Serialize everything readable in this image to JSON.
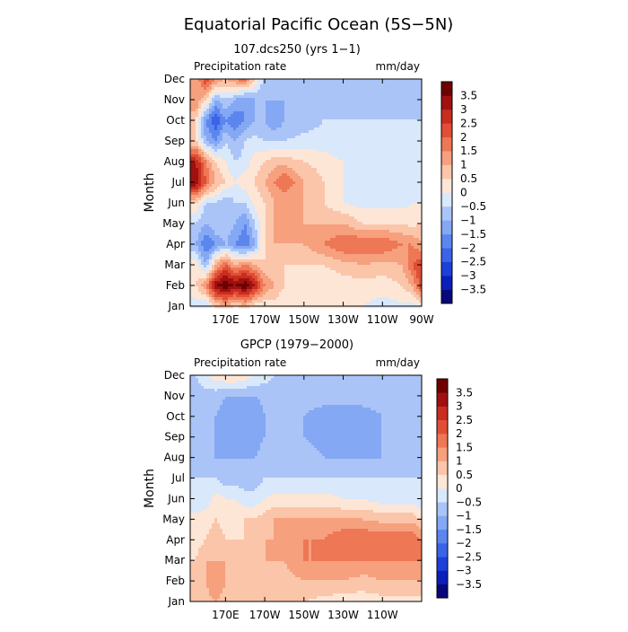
{
  "figure": {
    "title": "Equatorial Pacific Ocean (5S−5N)"
  },
  "chart_data": [
    {
      "type": "heatmap",
      "subtitle": "107.dcs250 (yrs 1−1)",
      "left_label": "Precipitation rate",
      "right_label": "mm/day",
      "ylabel": "Month",
      "y_categories": [
        "Jan",
        "Feb",
        "Mar",
        "Apr",
        "May",
        "Jun",
        "Jul",
        "Aug",
        "Sep",
        "Oct",
        "Nov",
        "Dec"
      ],
      "x_tick_labels": [
        "170E",
        "170W",
        "150W",
        "130W",
        "110W",
        "90W"
      ],
      "x_tick_lons": [
        170,
        190,
        210,
        230,
        250,
        270
      ],
      "x_range": [
        152,
        270
      ],
      "colorbar_labels": [
        "3.5",
        "3",
        "2.5",
        "2",
        "1.5",
        "1",
        "0.5",
        "0",
        "−0.5",
        "−1",
        "−1.5",
        "−2",
        "−2.5",
        "−3",
        "−3.5"
      ],
      "x_lons": [
        155,
        160,
        165,
        170,
        175,
        180,
        185,
        190,
        195,
        200,
        210,
        220,
        230,
        240,
        250,
        260,
        265,
        270
      ],
      "z": [
        [
          -0.3,
          -0.5,
          0.5,
          1.0,
          0.3,
          0.8,
          0.2,
          0.0,
          0.3,
          0.0,
          0.0,
          0.2,
          0.0,
          0.0,
          -0.2,
          -0.1,
          -0.2,
          0.0
        ],
        [
          0.5,
          1.5,
          3.5,
          4.0,
          3.5,
          4.0,
          3.0,
          1.5,
          1.0,
          0.5,
          0.3,
          0.0,
          0.2,
          0.3,
          0.2,
          0.5,
          1.0,
          2.5
        ],
        [
          0.3,
          -1.0,
          1.0,
          2.0,
          1.0,
          1.5,
          1.0,
          0.5,
          0.5,
          0.5,
          0.5,
          0.5,
          0.8,
          1.0,
          0.8,
          1.0,
          2.0,
          2.5
        ],
        [
          -1.0,
          -2.0,
          -1.5,
          -1.0,
          -1.5,
          -2.0,
          -1.0,
          0.5,
          1.0,
          1.0,
          1.0,
          1.5,
          2.0,
          2.0,
          2.0,
          1.5,
          1.5,
          1.0
        ],
        [
          -0.5,
          -1.0,
          -0.5,
          -0.5,
          -1.0,
          -1.5,
          -0.5,
          0.5,
          1.0,
          1.5,
          1.0,
          1.0,
          1.0,
          0.5,
          0.5,
          0.5,
          0.3,
          0.5
        ],
        [
          0.5,
          -0.5,
          -0.5,
          -1.0,
          -0.5,
          -0.5,
          0.2,
          0.5,
          1.0,
          1.0,
          1.0,
          0.5,
          0.0,
          -0.2,
          -0.2,
          -0.2,
          0.0,
          0.0
        ],
        [
          3.5,
          2.0,
          1.0,
          0.5,
          0.0,
          0.3,
          0.5,
          1.0,
          1.5,
          2.0,
          1.0,
          0.5,
          0.0,
          -0.3,
          -0.3,
          -0.3,
          -0.2,
          -0.2
        ],
        [
          3.0,
          1.5,
          0.5,
          0.0,
          -0.5,
          -0.3,
          0.3,
          0.5,
          0.8,
          0.8,
          0.5,
          0.3,
          0.0,
          -0.3,
          -0.3,
          -0.3,
          -0.3,
          -0.3
        ],
        [
          0.5,
          -1.0,
          -1.5,
          -0.5,
          -1.0,
          -0.5,
          -0.3,
          -0.5,
          -0.5,
          -0.5,
          -0.3,
          -0.3,
          -0.5,
          -0.5,
          -0.3,
          -0.5,
          -0.5,
          -0.5
        ],
        [
          0.5,
          -1.5,
          -2.5,
          -1.5,
          -2.0,
          -1.5,
          -1.0,
          -1.0,
          -1.5,
          -1.0,
          -0.8,
          -0.5,
          -0.5,
          -0.5,
          -0.5,
          -0.5,
          -0.5,
          -0.5
        ],
        [
          1.5,
          0.5,
          -1.0,
          -0.5,
          -1.0,
          -1.5,
          -1.0,
          -1.0,
          -1.0,
          -1.0,
          -1.0,
          -0.8,
          -0.8,
          -0.8,
          -0.8,
          -0.8,
          -0.8,
          -0.8
        ],
        [
          1.0,
          2.5,
          1.5,
          1.0,
          1.5,
          2.0,
          0.5,
          -0.8,
          -1.0,
          -0.8,
          -0.8,
          -0.8,
          -0.8,
          -0.8,
          -0.8,
          -0.8,
          -0.8,
          -0.8
        ]
      ]
    },
    {
      "type": "heatmap",
      "subtitle": "GPCP (1979−2000)",
      "left_label": "Precipitation rate",
      "right_label": "mm/day",
      "ylabel": "Month",
      "y_categories": [
        "Jan",
        "Feb",
        "Mar",
        "Apr",
        "May",
        "Jun",
        "Jul",
        "Aug",
        "Sep",
        "Oct",
        "Nov",
        "Dec"
      ],
      "x_tick_labels": [
        "170E",
        "170W",
        "150W",
        "130W",
        "110W"
      ],
      "x_tick_lons": [
        170,
        190,
        210,
        230,
        250
      ],
      "x_range": [
        152,
        270
      ],
      "colorbar_labels": [
        "3.5",
        "3",
        "2.5",
        "2",
        "1.5",
        "1",
        "0.5",
        "0",
        "−0.5",
        "−1",
        "−1.5",
        "−2",
        "−2.5",
        "−3",
        "−3.5"
      ],
      "x_lons": [
        155,
        160,
        165,
        170,
        175,
        180,
        185,
        190,
        195,
        200,
        210,
        220,
        230,
        240,
        250,
        260,
        265,
        270
      ],
      "z": [
        [
          0.5,
          0.8,
          1.0,
          0.8,
          0.8,
          0.5,
          0.5,
          0.5,
          0.5,
          0.5,
          0.5,
          0.3,
          0.2,
          0.2,
          0.3,
          0.3,
          0.3,
          0.3
        ],
        [
          0.8,
          1.0,
          1.5,
          1.0,
          1.0,
          0.8,
          0.8,
          0.8,
          0.8,
          0.8,
          1.0,
          1.0,
          1.0,
          0.8,
          1.0,
          1.0,
          1.0,
          1.0
        ],
        [
          0.5,
          1.0,
          1.0,
          1.0,
          0.8,
          0.5,
          0.8,
          1.0,
          1.0,
          1.0,
          1.5,
          1.5,
          1.5,
          1.5,
          1.5,
          1.5,
          1.5,
          1.5
        ],
        [
          0.3,
          0.5,
          0.8,
          0.5,
          0.5,
          0.5,
          0.8,
          1.0,
          1.0,
          1.0,
          1.5,
          1.5,
          2.0,
          2.0,
          2.0,
          2.0,
          2.0,
          1.5
        ],
        [
          0.2,
          0.3,
          0.5,
          0.3,
          0.3,
          0.5,
          0.5,
          0.8,
          1.0,
          1.0,
          1.0,
          1.0,
          1.0,
          1.0,
          0.8,
          0.8,
          0.8,
          0.5
        ],
        [
          -0.5,
          -0.3,
          0.2,
          0.0,
          0.0,
          -0.3,
          -0.3,
          0.0,
          0.2,
          0.2,
          0.2,
          0.2,
          0.0,
          0.0,
          -0.3,
          -0.3,
          -0.3,
          -0.5
        ],
        [
          -0.5,
          -0.5,
          -0.5,
          -0.8,
          -0.8,
          -0.8,
          -0.8,
          -0.5,
          -0.5,
          -0.5,
          -0.5,
          -0.5,
          -0.5,
          -0.5,
          -0.5,
          -0.5,
          -0.5,
          -0.5
        ],
        [
          -0.8,
          -0.8,
          -1.0,
          -1.0,
          -1.0,
          -1.0,
          -1.0,
          -0.8,
          -0.8,
          -0.8,
          -0.8,
          -1.0,
          -1.0,
          -1.0,
          -1.0,
          -1.0,
          -0.8,
          -0.8
        ],
        [
          -0.8,
          -1.0,
          -1.0,
          -1.2,
          -1.5,
          -1.5,
          -1.2,
          -1.0,
          -0.8,
          -0.8,
          -1.0,
          -1.2,
          -1.2,
          -1.2,
          -1.0,
          -1.0,
          -1.0,
          -0.8
        ],
        [
          -0.8,
          -1.0,
          -1.0,
          -1.2,
          -1.5,
          -1.5,
          -1.5,
          -1.0,
          -0.8,
          -0.8,
          -1.0,
          -1.2,
          -1.2,
          -1.2,
          -1.0,
          -1.0,
          -0.8,
          -0.8
        ],
        [
          -0.8,
          -0.8,
          -0.8,
          -1.0,
          -1.0,
          -1.0,
          -1.0,
          -0.8,
          -0.8,
          -0.8,
          -0.8,
          -0.8,
          -0.8,
          -0.8,
          -0.8,
          -0.8,
          -0.8,
          -0.8
        ],
        [
          -0.5,
          0.0,
          0.3,
          0.5,
          0.5,
          0.3,
          0.0,
          -0.3,
          -0.5,
          -0.5,
          -0.5,
          -0.5,
          -0.5,
          -0.5,
          -0.5,
          -0.5,
          -0.5,
          -0.5
        ]
      ]
    }
  ],
  "palette": [
    "#08087a",
    "#0b20b8",
    "#1f3fd9",
    "#3a63e6",
    "#5c86ee",
    "#84a8f4",
    "#aac4f7",
    "#d9e8fa",
    "#fde6d6",
    "#fbc5aa",
    "#f6a07e",
    "#ee7755",
    "#e04f35",
    "#c92d1f",
    "#a01010",
    "#6e0000"
  ]
}
